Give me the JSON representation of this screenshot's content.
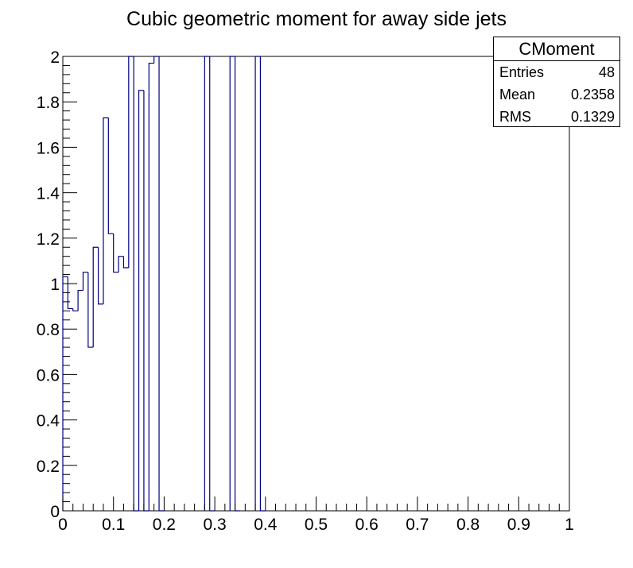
{
  "chart_data": {
    "type": "histogram",
    "title": "Cubic geometric moment for away side jets",
    "xlim": [
      0,
      1
    ],
    "ylim": [
      0,
      2
    ],
    "x_ticks": [
      "0",
      "0.1",
      "0.2",
      "0.3",
      "0.4",
      "0.5",
      "0.6",
      "0.7",
      "0.8",
      "0.9",
      "1"
    ],
    "y_ticks": [
      "0",
      "0.2",
      "0.4",
      "0.6",
      "0.8",
      "1",
      "1.2",
      "1.4",
      "1.6",
      "1.8",
      "2"
    ],
    "bin_width": 0.01,
    "bins": [
      {
        "x0": 0.0,
        "y": 1.03
      },
      {
        "x0": 0.01,
        "y": 0.89
      },
      {
        "x0": 0.02,
        "y": 0.88
      },
      {
        "x0": 0.03,
        "y": 0.97
      },
      {
        "x0": 0.04,
        "y": 1.05
      },
      {
        "x0": 0.05,
        "y": 0.72
      },
      {
        "x0": 0.06,
        "y": 1.16
      },
      {
        "x0": 0.07,
        "y": 0.91
      },
      {
        "x0": 0.08,
        "y": 1.73
      },
      {
        "x0": 0.09,
        "y": 1.22
      },
      {
        "x0": 0.1,
        "y": 1.05
      },
      {
        "x0": 0.11,
        "y": 1.12
      },
      {
        "x0": 0.12,
        "y": 1.07
      },
      {
        "x0": 0.13,
        "y": 2.0
      },
      {
        "x0": 0.14,
        "y": 0
      },
      {
        "x0": 0.15,
        "y": 1.85
      },
      {
        "x0": 0.16,
        "y": 0
      },
      {
        "x0": 0.17,
        "y": 1.97
      },
      {
        "x0": 0.18,
        "y": 2.0
      },
      {
        "x0": 0.19,
        "y": 0
      },
      {
        "x0": 0.28,
        "y": 2.0
      },
      {
        "x0": 0.29,
        "y": 0
      },
      {
        "x0": 0.33,
        "y": 2.0
      },
      {
        "x0": 0.34,
        "y": 0
      },
      {
        "x0": 0.38,
        "y": 2.0
      },
      {
        "x0": 0.39,
        "y": 0
      }
    ],
    "line_color": "#000080"
  },
  "stats": {
    "name": "CMoment",
    "entries_label": "Entries",
    "entries_value": "48",
    "mean_label": "Mean",
    "mean_value": "0.2358",
    "rms_label": "RMS",
    "rms_value": "0.1329"
  }
}
